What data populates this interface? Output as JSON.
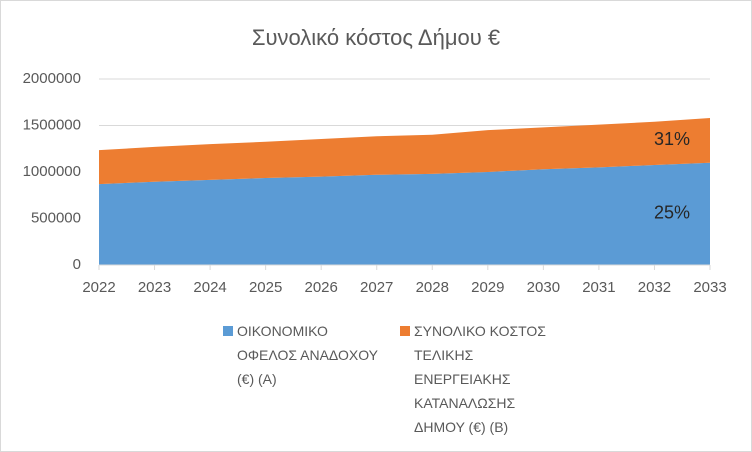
{
  "chart_data": {
    "type": "stacked-area",
    "title": "Συνολικό κόστος Δήμου €",
    "categories": [
      "2022",
      "2023",
      "2024",
      "2025",
      "2026",
      "2027",
      "2028",
      "2029",
      "2030",
      "2031",
      "2032",
      "2033"
    ],
    "series": [
      {
        "name": "ΟΙΚΟΝΟΜΙΚΟ ΟΦΕΛΟΣ ΑΝΑΔΟΧΟΥ (€) (Α)",
        "color": "#5b9bd5",
        "values": [
          870000,
          895000,
          915000,
          935000,
          950000,
          970000,
          980000,
          1000000,
          1030000,
          1050000,
          1075000,
          1100000
        ]
      },
      {
        "name": "ΣΥΝΟΛΙΚΟ ΚΟΣΤΟΣ ΤΕΛΙΚΗΣ ΕΝΕΡΓΕΙΑΚΗΣ ΚΑΤΑΝΑΛΩΣΗΣ ΔΗΜΟΥ (€) (Β)",
        "color": "#ed7d31",
        "values": [
          365000,
          375000,
          385000,
          390000,
          405000,
          415000,
          420000,
          450000,
          450000,
          460000,
          465000,
          480000
        ]
      }
    ],
    "annotations": [
      "31%",
      "25%"
    ],
    "ylim": [
      0,
      2000000
    ],
    "yticks": [
      0,
      500000,
      1000000,
      1500000,
      2000000
    ],
    "grid": true
  }
}
